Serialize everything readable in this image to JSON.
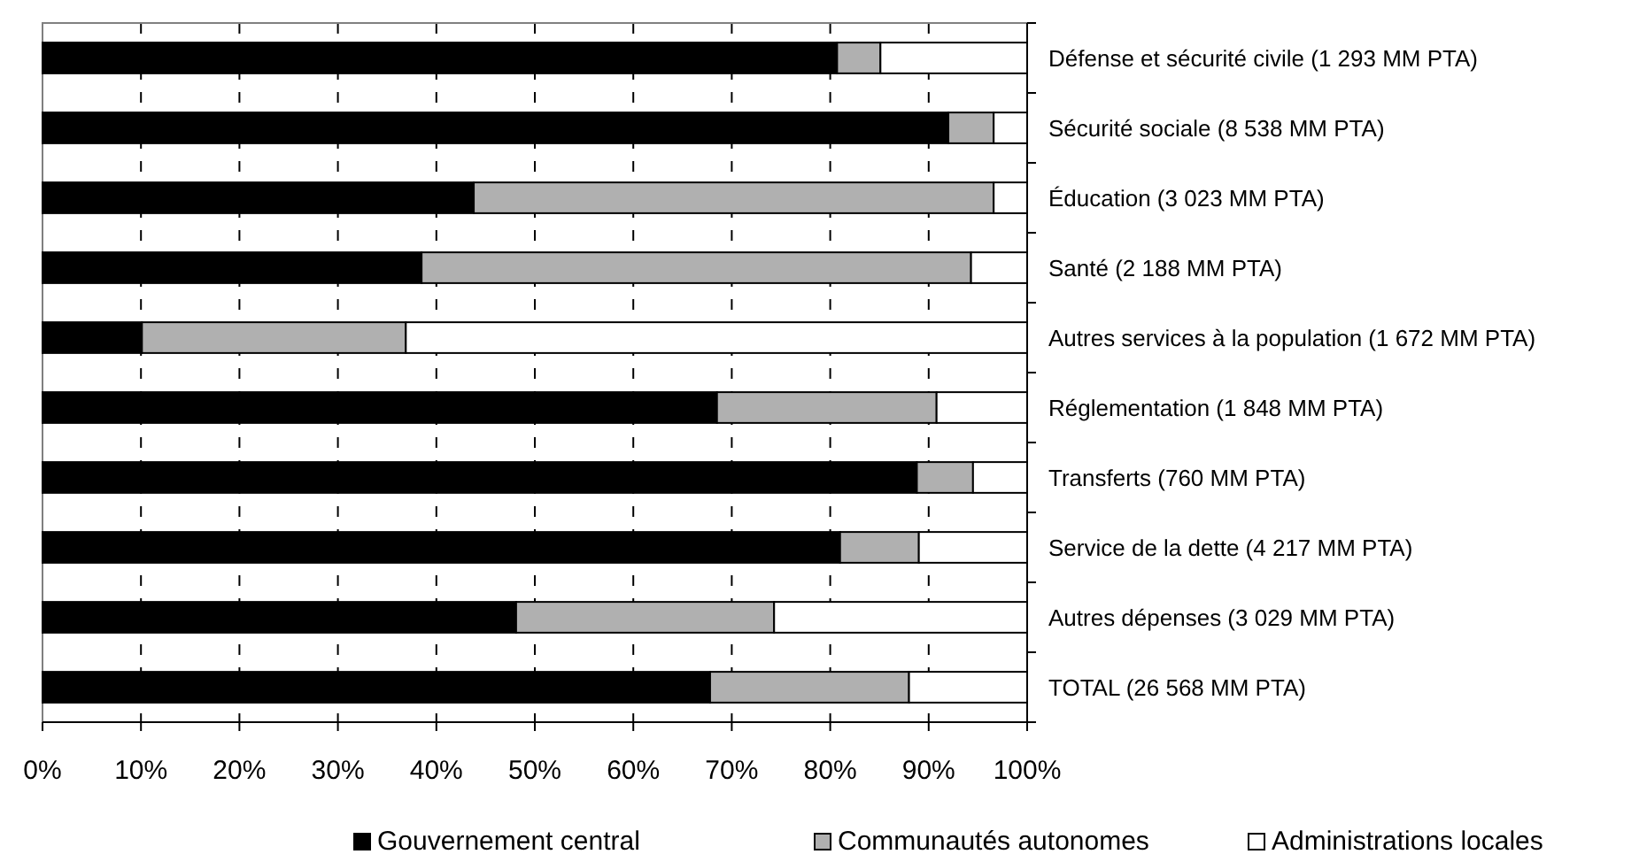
{
  "chart_data": {
    "type": "bar",
    "orientation": "horizontal",
    "stacked": true,
    "categories": [
      "Défense et sécurité civile (1 293 MM PTA)",
      "Sécurité sociale (8 538 MM PTA)",
      "Éducation (3 023 MM PTA)",
      "Santé (2 188 MM PTA)",
      "Autres services à la population (1 672 MM PTA)",
      "Réglementation (1 848 MM PTA)",
      "Transferts (760 MM PTA)",
      "Service de la dette (4 217 MM PTA)",
      "Autres dépenses (3 029 MM PTA)",
      "TOTAL (26 568 MM PTA)"
    ],
    "series": [
      {
        "name": "Gouvernement central",
        "color": "#000000",
        "values": [
          80.7,
          92.0,
          43.8,
          38.5,
          10.1,
          68.5,
          88.8,
          81.0,
          48.1,
          67.8
        ]
      },
      {
        "name": "Communautés autonomes",
        "color": "#b0b0b0",
        "values": [
          4.4,
          4.6,
          52.8,
          55.8,
          26.8,
          22.3,
          5.7,
          8.0,
          26.2,
          20.2
        ]
      },
      {
        "name": "Administrations locales",
        "color": "#ffffff",
        "values": [
          14.9,
          3.4,
          3.4,
          5.7,
          63.1,
          9.2,
          5.5,
          11.0,
          25.7,
          12.0
        ]
      }
    ],
    "xlim": [
      0,
      100
    ],
    "xticks": [
      {
        "value": 0,
        "label": "0%"
      },
      {
        "value": 10,
        "label": "10%"
      },
      {
        "value": 20,
        "label": "20%"
      },
      {
        "value": 30,
        "label": "30%"
      },
      {
        "value": 40,
        "label": "40%"
      },
      {
        "value": 50,
        "label": "50%"
      },
      {
        "value": 60,
        "label": "60%"
      },
      {
        "value": 70,
        "label": "70%"
      },
      {
        "value": 80,
        "label": "80%"
      },
      {
        "value": 90,
        "label": "90%"
      },
      {
        "value": 100,
        "label": "100%"
      }
    ],
    "grid": "x",
    "legend": "bottom"
  }
}
